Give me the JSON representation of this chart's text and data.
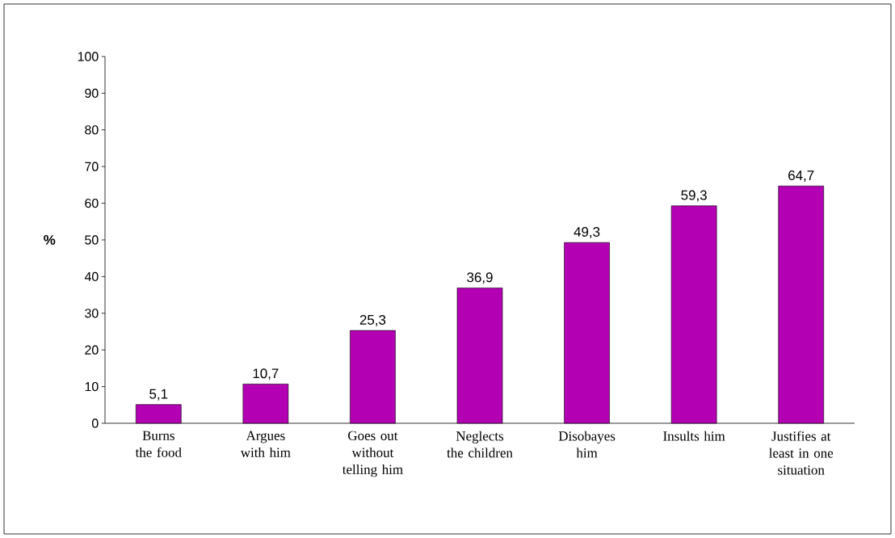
{
  "chart_data": {
    "type": "bar",
    "ylabel": "%",
    "categories": [
      "Burns the food",
      "Argues with him",
      "Goes out without telling him",
      "Neglects the children",
      "Disobayes him",
      "Insults him",
      "Justifies at least in one situation"
    ],
    "values": [
      5.1,
      10.7,
      25.3,
      36.9,
      49.3,
      59.3,
      64.7
    ],
    "value_labels": [
      "5,1",
      "10,7",
      "25,3",
      "36,9",
      "49,3",
      "59,3",
      "64,7"
    ],
    "color": "#b300b3",
    "ylim": [
      0,
      100
    ],
    "yticks": [
      0,
      10,
      20,
      30,
      40,
      50,
      60,
      70,
      80,
      90,
      100
    ],
    "grid": false
  }
}
